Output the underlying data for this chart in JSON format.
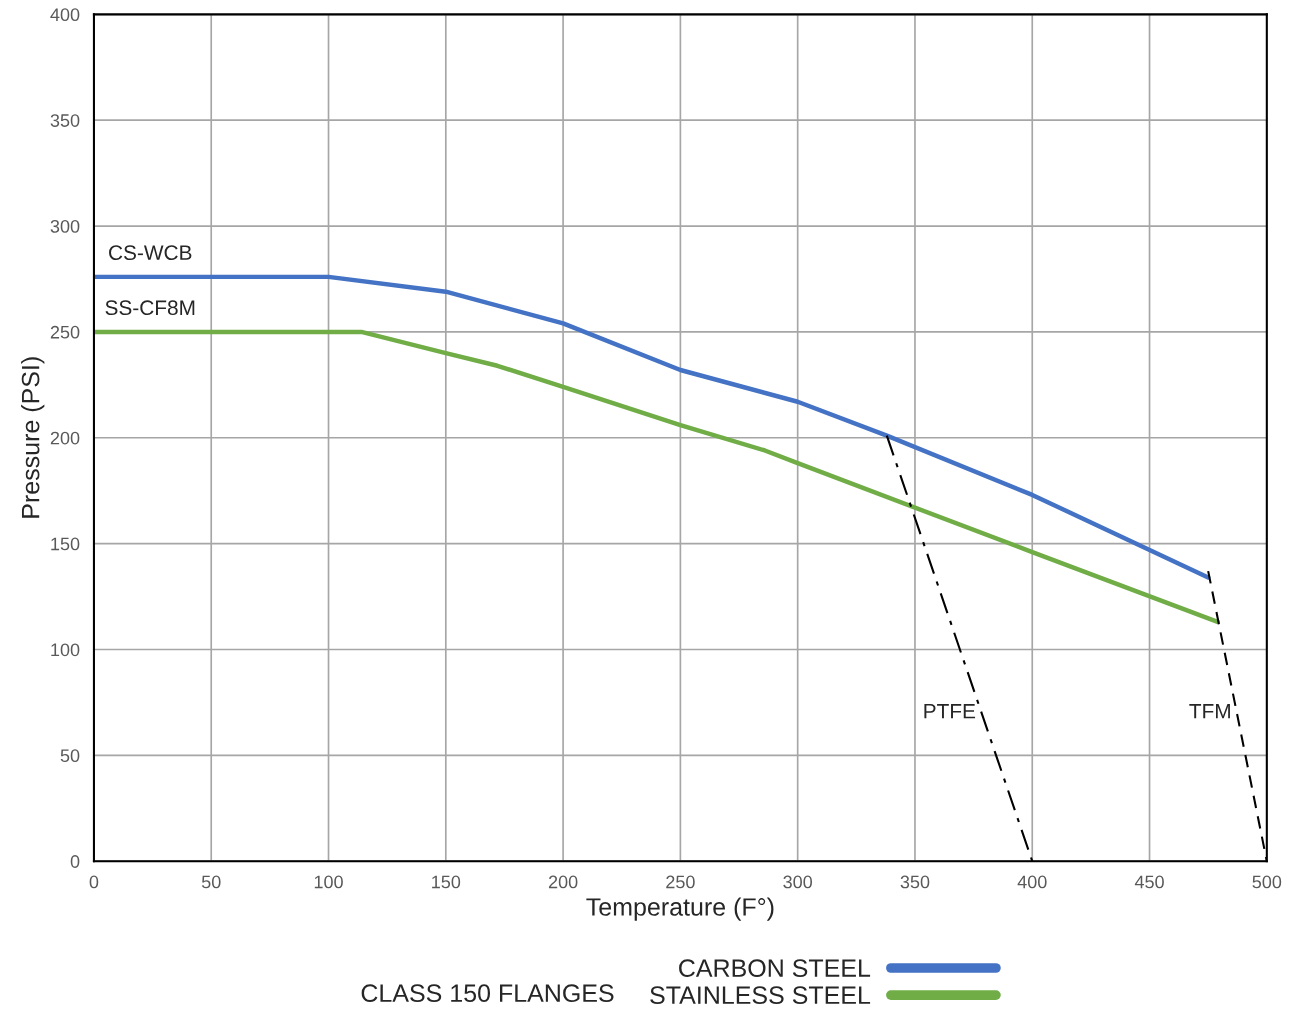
{
  "chart_data": {
    "type": "line",
    "xlabel": "Temperature (F°)",
    "ylabel": "Pressure (PSI)",
    "legend_title": "CLASS 150 FLANGES",
    "legend": "bottom",
    "grid": true,
    "xlim": [
      0,
      500
    ],
    "ylim": [
      0,
      400
    ],
    "xticks": [
      0,
      50,
      100,
      150,
      200,
      250,
      300,
      350,
      400,
      450,
      500
    ],
    "yticks": [
      0,
      50,
      100,
      150,
      200,
      250,
      300,
      350,
      400
    ],
    "series": [
      {
        "name": "CARBON STEEL",
        "color": "#4472c4",
        "x": [
          0,
          100,
          150,
          200,
          250,
          300,
          338,
          400,
          475
        ],
        "values": [
          276,
          276,
          269,
          254,
          232,
          217,
          201,
          173,
          134
        ]
      },
      {
        "name": "STAINLESS STEEL",
        "color": "#70ad47",
        "x": [
          0,
          114,
          150,
          172,
          200,
          250,
          286,
          300,
          400,
          479
        ],
        "values": [
          250,
          250,
          240,
          234,
          224,
          206,
          194,
          188,
          146,
          113
        ]
      },
      {
        "color": "#000000",
        "line_style": "dashdot",
        "x": [
          338,
          400
        ],
        "values": [
          201,
          0
        ]
      },
      {
        "color": "#000000",
        "line_style": "dashed",
        "x": [
          475,
          500
        ],
        "values": [
          137,
          0
        ]
      }
    ],
    "annotations": [
      {
        "text": "CS-WCB",
        "x": 24,
        "y": 276
      },
      {
        "text": "SS-CF8M",
        "x": 24,
        "y": 250
      },
      {
        "text": "PTFE",
        "x": 378,
        "y": 70
      },
      {
        "text": "TFM",
        "x": 487,
        "y": 70
      }
    ]
  }
}
